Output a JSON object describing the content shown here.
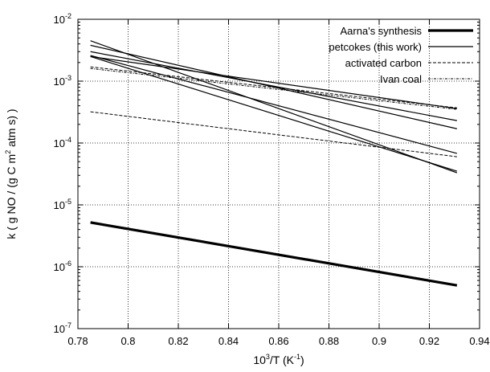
{
  "chart_data": {
    "type": "line",
    "xlabel": "10³/T (K⁻¹)",
    "xlabel_main": "10",
    "xlabel_sup": "3",
    "xlabel_rest": "/T (K",
    "xlabel_sup2": "-1",
    "xlabel_close": ")",
    "ylabel": "k ( g NO / (g C m² atm s) )",
    "ylabel_main": "k ( g NO / (g C m",
    "ylabel_sup": "2",
    "ylabel_rest": " atm s) )",
    "xlim": [
      0.78,
      0.94
    ],
    "ylim": [
      1e-07,
      0.01
    ],
    "yscale": "log",
    "grid": true,
    "legend_position": "top-right",
    "x_ticks": [
      "0.78",
      "0.8",
      "0.82",
      "0.84",
      "0.86",
      "0.88",
      "0.9",
      "0.92",
      "0.94"
    ],
    "y_ticks": [
      {
        "base": "10",
        "exp": "-7"
      },
      {
        "base": "10",
        "exp": "-6"
      },
      {
        "base": "10",
        "exp": "-5"
      },
      {
        "base": "10",
        "exp": "-4"
      },
      {
        "base": "10",
        "exp": "-3"
      },
      {
        "base": "10",
        "exp": "-2"
      }
    ],
    "series": [
      {
        "name": "Aarna's synthesis",
        "style": "thick",
        "points": [
          [
            0.785,
            5.2e-06
          ],
          [
            0.931,
            5e-07
          ]
        ]
      },
      {
        "name": "petcokes (this work)",
        "style": "solid",
        "points": [
          [
            0.785,
            0.0045
          ],
          [
            0.931,
            3.3e-05
          ]
        ]
      },
      {
        "name": "",
        "style": "solid",
        "points": [
          [
            0.785,
            0.0038
          ],
          [
            0.931,
            0.00017
          ]
        ]
      },
      {
        "name": "",
        "style": "solid",
        "points": [
          [
            0.785,
            0.003
          ],
          [
            0.931,
            0.00023
          ]
        ]
      },
      {
        "name": "",
        "style": "solid",
        "points": [
          [
            0.785,
            0.0026
          ],
          [
            0.931,
            6.8e-05
          ]
        ]
      },
      {
        "name": "",
        "style": "solid",
        "points": [
          [
            0.785,
            0.0025
          ],
          [
            0.931,
            0.00036
          ]
        ]
      },
      {
        "name": "",
        "style": "solid",
        "points": [
          [
            0.785,
            0.0025
          ],
          [
            0.931,
            3.5e-05
          ]
        ]
      },
      {
        "name": "activated carbon",
        "style": "dashed",
        "points": [
          [
            0.785,
            0.00032
          ],
          [
            0.931,
            6e-05
          ]
        ]
      },
      {
        "name": "",
        "style": "dashed",
        "points": [
          [
            0.785,
            0.0017
          ],
          [
            0.931,
            0.00037
          ]
        ]
      },
      {
        "name": "Ivan coal",
        "style": "dotdash",
        "points": [
          [
            0.785,
            0.0016
          ],
          [
            0.931,
            0.00035
          ]
        ]
      }
    ],
    "legend": [
      {
        "label": "Aarna's synthesis",
        "style": "thick"
      },
      {
        "label": "petcokes (this work)",
        "style": "solid"
      },
      {
        "label": "activated carbon",
        "style": "dashed"
      },
      {
        "label": "Ivan coal",
        "style": "dotdash"
      }
    ]
  }
}
